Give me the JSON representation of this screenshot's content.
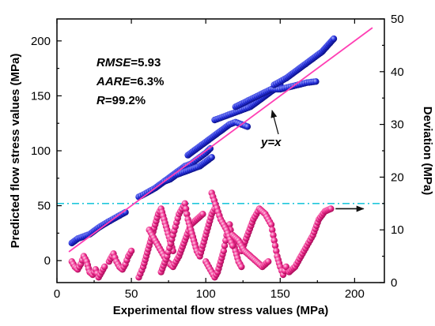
{
  "chart_data": {
    "type": "scatter",
    "xlabel": "Experimental flow stress values (MPa)",
    "ylabel": "Predicted flow stress values (MPa)",
    "y2label": "Deviation (MPa)",
    "xlim": [
      0,
      220
    ],
    "ylim": [
      -20,
      220
    ],
    "y2lim": [
      0,
      50
    ],
    "xticks": [
      0,
      50,
      100,
      150,
      200
    ],
    "yticks": [
      0,
      50,
      100,
      150,
      200
    ],
    "y2ticks": [
      0,
      10,
      20,
      30,
      40,
      50
    ],
    "stats": [
      {
        "name": "RMSE",
        "value": "=5.93"
      },
      {
        "name": "AARE",
        "value": "=6.3%"
      },
      {
        "name": "R",
        "value": "=99.2%"
      }
    ],
    "diagonal": {
      "label": "y=x",
      "x": [
        8,
        212
      ],
      "y": [
        8,
        212
      ],
      "color": "#ff3fb4"
    },
    "threshold_line": {
      "y2": 15,
      "color": "#22c8dc"
    },
    "colors": {
      "predicted": "#1f2ad6",
      "deviation": "#ef2d8e"
    },
    "series": [
      {
        "axis": "left",
        "marker": "blue-dot",
        "segments": [
          [
            [
              10,
              16
            ],
            [
              12,
              18
            ],
            [
              14,
              20
            ],
            [
              22,
              24
            ],
            [
              25,
              27
            ],
            [
              28,
              30
            ],
            [
              34,
              35
            ],
            [
              38,
              38
            ],
            [
              42,
              41
            ],
            [
              46,
              44
            ]
          ],
          [
            [
              55,
              58
            ],
            [
              58,
              60
            ],
            [
              62,
              63
            ],
            [
              66,
              66
            ],
            [
              70,
              70
            ],
            [
              74,
              74
            ],
            [
              78,
              78
            ],
            [
              82,
              82
            ],
            [
              86,
              86
            ],
            [
              90,
              88
            ],
            [
              95,
              93
            ],
            [
              100,
              98
            ],
            [
              103,
              102
            ]
          ],
          [
            [
              72,
              72
            ],
            [
              76,
              74
            ],
            [
              80,
              78
            ],
            [
              84,
              80
            ],
            [
              88,
              82
            ],
            [
              92,
              84
            ],
            [
              96,
              86
            ],
            [
              100,
              90
            ],
            [
              104,
              94
            ]
          ],
          [
            [
              88,
              96
            ],
            [
              92,
              100
            ],
            [
              96,
              104
            ],
            [
              100,
              108
            ],
            [
              104,
              112
            ],
            [
              108,
              116
            ],
            [
              112,
              120
            ],
            [
              116,
              124
            ],
            [
              120,
              126
            ],
            [
              124,
              124
            ],
            [
              128,
              122
            ]
          ],
          [
            [
              106,
              128
            ],
            [
              110,
              130
            ],
            [
              114,
              132
            ],
            [
              118,
              134
            ],
            [
              122,
              136
            ],
            [
              126,
              138
            ],
            [
              130,
              140
            ],
            [
              134,
              144
            ],
            [
              138,
              148
            ],
            [
              142,
              152
            ],
            [
              146,
              156
            ],
            [
              150,
              160
            ]
          ],
          [
            [
              120,
              140
            ],
            [
              126,
              144
            ],
            [
              132,
              148
            ],
            [
              138,
              152
            ],
            [
              144,
              156
            ],
            [
              150,
              156
            ],
            [
              156,
              158
            ],
            [
              162,
              160
            ],
            [
              168,
              162
            ],
            [
              174,
              163
            ]
          ],
          [
            [
              146,
              160
            ],
            [
              150,
              163
            ],
            [
              154,
              166
            ],
            [
              158,
              170
            ],
            [
              162,
              174
            ],
            [
              166,
              178
            ],
            [
              170,
              182
            ],
            [
              174,
              186
            ],
            [
              178,
              190
            ],
            [
              182,
              196
            ],
            [
              186,
              202
            ]
          ]
        ]
      },
      {
        "axis": "right",
        "marker": "pink-dot",
        "segments": [
          [
            [
              10,
              4
            ],
            [
              12,
              3
            ],
            [
              14,
              2.5
            ],
            [
              16,
              3.5
            ],
            [
              18,
              5
            ],
            [
              20,
              4
            ],
            [
              22,
              2
            ],
            [
              24,
              1.5
            ],
            [
              26,
              2.5
            ],
            [
              28,
              1
            ],
            [
              30,
              2
            ],
            [
              32,
              3
            ]
          ],
          [
            [
              35,
              4
            ],
            [
              38,
              5.5
            ],
            [
              40,
              4
            ],
            [
              42,
              3
            ],
            [
              44,
              2.5
            ],
            [
              46,
              3.5
            ],
            [
              48,
              5
            ],
            [
              50,
              6
            ]
          ],
          [
            [
              55,
              1
            ],
            [
              58,
              3
            ],
            [
              60,
              5
            ],
            [
              62,
              7
            ],
            [
              64,
              9
            ],
            [
              66,
              11
            ],
            [
              68,
              13
            ],
            [
              70,
              14
            ],
            [
              72,
              12
            ],
            [
              74,
              10
            ],
            [
              76,
              8
            ],
            [
              78,
              6
            ]
          ],
          [
            [
              62,
              10
            ],
            [
              66,
              8
            ],
            [
              70,
              6
            ],
            [
              74,
              4
            ],
            [
              78,
              3
            ],
            [
              82,
              5
            ],
            [
              86,
              8
            ],
            [
              90,
              11
            ],
            [
              94,
              12
            ],
            [
              98,
              13
            ]
          ],
          [
            [
              70,
              2
            ],
            [
              74,
              5
            ],
            [
              78,
              9
            ],
            [
              82,
              13
            ],
            [
              86,
              15
            ],
            [
              88,
              12
            ],
            [
              90,
              10
            ],
            [
              92,
              8
            ],
            [
              94,
              6
            ],
            [
              96,
              5
            ],
            [
              98,
              7
            ],
            [
              100,
              9
            ],
            [
              102,
              11
            ],
            [
              104,
              13
            ],
            [
              106,
              14
            ]
          ],
          [
            [
              100,
              4
            ],
            [
              104,
              2
            ],
            [
              106,
              1
            ],
            [
              108,
              2
            ],
            [
              110,
              4
            ],
            [
              112,
              6
            ],
            [
              114,
              9
            ],
            [
              116,
              11
            ],
            [
              118,
              8
            ],
            [
              120,
              6
            ],
            [
              122,
              4
            ],
            [
              124,
              3
            ]
          ],
          [
            [
              104,
              17
            ],
            [
              110,
              12
            ],
            [
              114,
              10
            ],
            [
              118,
              7
            ]
          ],
          [
            [
              124,
              6
            ],
            [
              128,
              9
            ],
            [
              132,
              12
            ],
            [
              136,
              14
            ],
            [
              140,
              13
            ],
            [
              144,
              11
            ],
            [
              146,
              8
            ],
            [
              148,
              5
            ],
            [
              150,
              3
            ],
            [
              152,
              1.5
            ],
            [
              154,
              3
            ]
          ],
          [
            [
              118,
              9
            ],
            [
              122,
              8
            ],
            [
              126,
              6
            ],
            [
              130,
              5
            ],
            [
              134,
              4
            ],
            [
              138,
              3
            ],
            [
              142,
              4
            ]
          ],
          [
            [
              156,
              2
            ],
            [
              160,
              3
            ],
            [
              164,
              5
            ],
            [
              168,
              7
            ],
            [
              172,
              9
            ],
            [
              176,
              12
            ],
            [
              180,
              13.5
            ],
            [
              184,
              14
            ]
          ]
        ]
      }
    ],
    "arrow": {
      "from": [
        184,
        14
      ],
      "to": [
        206,
        14
      ]
    }
  }
}
